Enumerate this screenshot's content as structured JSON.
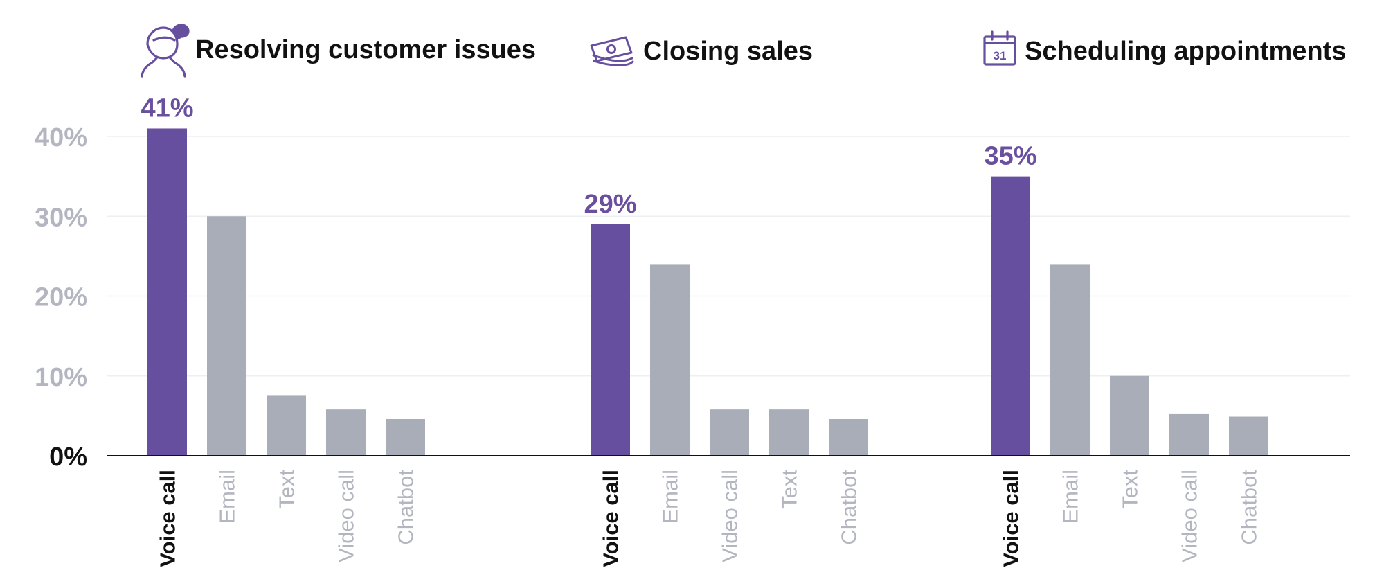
{
  "chart_data": {
    "type": "bar",
    "y_ticks": [
      "0%",
      "10%",
      "20%",
      "30%",
      "40%"
    ],
    "ylim": [
      0,
      40
    ],
    "grid": true,
    "colors": {
      "highlight": "#664f9e",
      "other": "#a9adb8",
      "axis": "#111111",
      "grid": "#eeeff2"
    },
    "groups": [
      {
        "title": "Resolving customer issues",
        "icon": "customer-support-icon",
        "categories": [
          "Voice call",
          "Email",
          "Text",
          "Video call",
          "Chatbot"
        ],
        "values": [
          41,
          30,
          7.6,
          5.8,
          4.6
        ],
        "highlight_label": "41%"
      },
      {
        "title": "Closing sales",
        "icon": "money-icon",
        "categories": [
          "Voice call",
          "Email",
          "Video call",
          "Text",
          "Chatbot"
        ],
        "values": [
          29,
          24,
          5.8,
          5.8,
          4.6
        ],
        "highlight_label": "29%"
      },
      {
        "title": "Scheduling appointments",
        "icon": "calendar-icon",
        "icon_text": "31",
        "categories": [
          "Voice call",
          "Email",
          "Text",
          "Video call",
          "Chatbot"
        ],
        "values": [
          35,
          24,
          10,
          5.3,
          4.9
        ],
        "highlight_label": "35%"
      }
    ]
  }
}
